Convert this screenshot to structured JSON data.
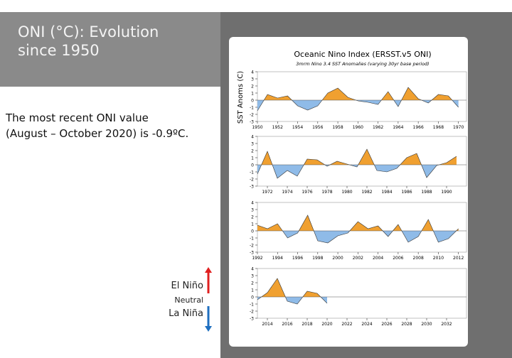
{
  "slide": {
    "title": [
      "ONI (°C): Evolution",
      "since 1950"
    ],
    "body": [
      "The most recent ONI value",
      "(August – October 2020) is -0.9ºC."
    ],
    "legend": {
      "el_nino": "El Niño",
      "neutral": "Neutral",
      "la_nina": "La Niña"
    }
  },
  "chart_data": [
    {
      "type": "area",
      "title": "Oceanic Nino Index (ERSST.v5 ONI)",
      "subtitle": "3mrm Nino 3.4 SST Anomalies (varying 30yr base period)",
      "y_label": "SST Anoms (C)",
      "positive_color": "#f0a030",
      "negative_color": "#8fbbe8",
      "x": [
        1950,
        1951,
        1952,
        1953,
        1954,
        1955,
        1956,
        1957,
        1958,
        1959,
        1960,
        1961,
        1962,
        1963,
        1964,
        1965,
        1966,
        1967,
        1968,
        1969,
        1970
      ],
      "values": [
        -1.5,
        0.8,
        0.3,
        0.6,
        -0.8,
        -1.4,
        -0.8,
        1.0,
        1.7,
        0.4,
        -0.1,
        -0.3,
        -0.6,
        1.2,
        -0.9,
        1.8,
        0.2,
        -0.4,
        0.8,
        0.6,
        -1.0
      ],
      "xlim": [
        1950,
        1970.8
      ],
      "ylim": [
        -3,
        4
      ],
      "xticks": [
        1950,
        1952,
        1954,
        1956,
        1958,
        1960,
        1962,
        1964,
        1966,
        1968,
        1970
      ],
      "yticks": [
        -3,
        -2,
        -1,
        0,
        1,
        2,
        3,
        4
      ]
    },
    {
      "type": "area",
      "positive_color": "#f0a030",
      "negative_color": "#8fbbe8",
      "x": [
        1971,
        1972,
        1973,
        1974,
        1975,
        1976,
        1977,
        1978,
        1979,
        1980,
        1981,
        1982,
        1983,
        1984,
        1985,
        1986,
        1987,
        1988,
        1989,
        1990,
        1991
      ],
      "values": [
        -1.3,
        1.9,
        -1.9,
        -0.8,
        -1.6,
        0.8,
        0.7,
        -0.2,
        0.5,
        0.1,
        -0.3,
        2.2,
        -0.8,
        -1.0,
        -0.5,
        1.0,
        1.6,
        -1.8,
        -0.1,
        0.3,
        1.2
      ],
      "xlim": [
        1971,
        1992
      ],
      "ylim": [
        -3,
        4
      ],
      "xticks": [
        1972,
        1974,
        1976,
        1978,
        1980,
        1982,
        1984,
        1986,
        1988,
        1990
      ],
      "yticks": [
        -3,
        -2,
        -1,
        0,
        1,
        2,
        3,
        4
      ]
    },
    {
      "type": "area",
      "positive_color": "#f0a030",
      "negative_color": "#8fbbe8",
      "x": [
        1992,
        1993,
        1994,
        1995,
        1996,
        1997,
        1998,
        1999,
        2000,
        2001,
        2002,
        2003,
        2004,
        2005,
        2006,
        2007,
        2008,
        2009,
        2010,
        2011,
        2012
      ],
      "values": [
        0.8,
        0.3,
        1.0,
        -1.0,
        -0.3,
        2.2,
        -1.4,
        -1.7,
        -0.7,
        -0.3,
        1.3,
        0.3,
        0.7,
        -0.8,
        0.9,
        -1.6,
        -0.8,
        1.6,
        -1.6,
        -1.1,
        0.3
      ],
      "xlim": [
        1992,
        2012.8
      ],
      "ylim": [
        -3,
        4
      ],
      "xticks": [
        1992,
        1994,
        1996,
        1998,
        2000,
        2002,
        2004,
        2006,
        2008,
        2010,
        2012
      ],
      "yticks": [
        -3,
        -2,
        -1,
        0,
        1,
        2,
        3,
        4
      ]
    },
    {
      "type": "area",
      "positive_color": "#f0a030",
      "negative_color": "#8fbbe8",
      "x": [
        2013,
        2014,
        2015,
        2016,
        2017,
        2018,
        2019,
        2020
      ],
      "values": [
        -0.4,
        0.6,
        2.6,
        -0.6,
        -1.0,
        0.8,
        0.5,
        -0.9
      ],
      "xlim": [
        2013,
        2034
      ],
      "ylim": [
        -3,
        4
      ],
      "xticks": [
        2014,
        2016,
        2018,
        2020,
        2022,
        2024,
        2026,
        2028,
        2030,
        2032
      ],
      "yticks": [
        -3,
        -2,
        -1,
        0,
        1,
        2,
        3,
        4
      ]
    }
  ]
}
